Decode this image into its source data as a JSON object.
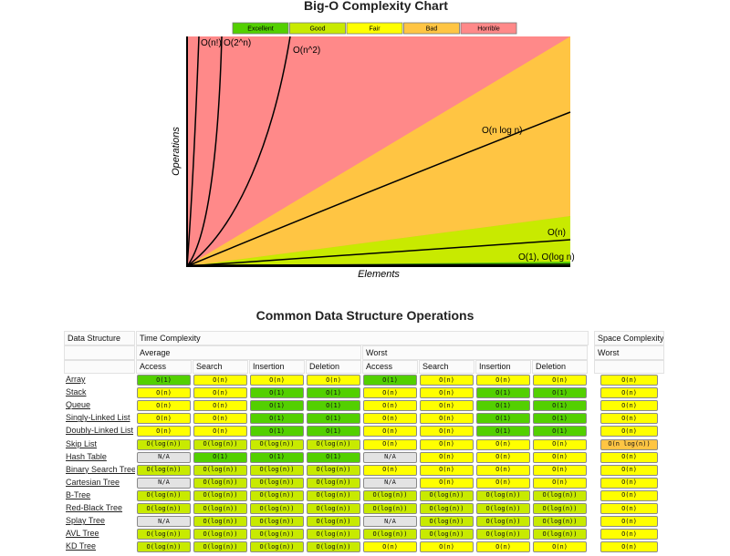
{
  "chart": {
    "title": "Big-O Complexity Chart",
    "legend": [
      {
        "label": "Excellent",
        "color": "#53d000"
      },
      {
        "label": "Good",
        "color": "#c8ea00"
      },
      {
        "label": "Fair",
        "color": "#ffff00"
      },
      {
        "label": "Bad",
        "color": "#ffc543"
      },
      {
        "label": "Horrible",
        "color": "#ff8989"
      }
    ],
    "y_axis_label": "Operations",
    "x_axis_label": "Elements",
    "curves": [
      "O(n!)",
      "O(2^n)",
      "O(n^2)",
      "O(n log n)",
      "O(n)",
      "O(1), O(log n)"
    ]
  },
  "table": {
    "title": "Common Data Structure Operations",
    "header": {
      "data_structure": "Data Structure",
      "time_complexity": "Time Complexity",
      "space_complexity": "Space Complexity",
      "average": "Average",
      "worst": "Worst",
      "space_worst": "Worst",
      "operations": [
        "Access",
        "Search",
        "Insertion",
        "Deletion",
        "Access",
        "Search",
        "Insertion",
        "Deletion"
      ]
    },
    "rows": [
      {
        "name": "Array",
        "cells": [
          {
            "text": "O(1)",
            "rating": "Excellent"
          },
          {
            "text": "O(n)",
            "rating": "Fair"
          },
          {
            "text": "O(n)",
            "rating": "Fair"
          },
          {
            "text": "O(n)",
            "rating": "Fair"
          },
          {
            "text": "O(1)",
            "rating": "Excellent"
          },
          {
            "text": "O(n)",
            "rating": "Fair"
          },
          {
            "text": "O(n)",
            "rating": "Fair"
          },
          {
            "text": "O(n)",
            "rating": "Fair"
          },
          {
            "text": "O(n)",
            "rating": "Fair"
          }
        ]
      },
      {
        "name": "Stack",
        "cells": [
          {
            "text": "O(n)",
            "rating": "Fair"
          },
          {
            "text": "O(n)",
            "rating": "Fair"
          },
          {
            "text": "O(1)",
            "rating": "Excellent"
          },
          {
            "text": "O(1)",
            "rating": "Excellent"
          },
          {
            "text": "O(n)",
            "rating": "Fair"
          },
          {
            "text": "O(n)",
            "rating": "Fair"
          },
          {
            "text": "O(1)",
            "rating": "Excellent"
          },
          {
            "text": "O(1)",
            "rating": "Excellent"
          },
          {
            "text": "O(n)",
            "rating": "Fair"
          }
        ]
      },
      {
        "name": "Queue",
        "cells": [
          {
            "text": "O(n)",
            "rating": "Fair"
          },
          {
            "text": "O(n)",
            "rating": "Fair"
          },
          {
            "text": "O(1)",
            "rating": "Excellent"
          },
          {
            "text": "O(1)",
            "rating": "Excellent"
          },
          {
            "text": "O(n)",
            "rating": "Fair"
          },
          {
            "text": "O(n)",
            "rating": "Fair"
          },
          {
            "text": "O(1)",
            "rating": "Excellent"
          },
          {
            "text": "O(1)",
            "rating": "Excellent"
          },
          {
            "text": "O(n)",
            "rating": "Fair"
          }
        ]
      },
      {
        "name": "Singly-Linked List",
        "cells": [
          {
            "text": "O(n)",
            "rating": "Fair"
          },
          {
            "text": "O(n)",
            "rating": "Fair"
          },
          {
            "text": "O(1)",
            "rating": "Excellent"
          },
          {
            "text": "O(1)",
            "rating": "Excellent"
          },
          {
            "text": "O(n)",
            "rating": "Fair"
          },
          {
            "text": "O(n)",
            "rating": "Fair"
          },
          {
            "text": "O(1)",
            "rating": "Excellent"
          },
          {
            "text": "O(1)",
            "rating": "Excellent"
          },
          {
            "text": "O(n)",
            "rating": "Fair"
          }
        ]
      },
      {
        "name": "Doubly-Linked List",
        "cells": [
          {
            "text": "O(n)",
            "rating": "Fair"
          },
          {
            "text": "O(n)",
            "rating": "Fair"
          },
          {
            "text": "O(1)",
            "rating": "Excellent"
          },
          {
            "text": "O(1)",
            "rating": "Excellent"
          },
          {
            "text": "O(n)",
            "rating": "Fair"
          },
          {
            "text": "O(n)",
            "rating": "Fair"
          },
          {
            "text": "O(1)",
            "rating": "Excellent"
          },
          {
            "text": "O(1)",
            "rating": "Excellent"
          },
          {
            "text": "O(n)",
            "rating": "Fair"
          }
        ]
      },
      {
        "name": "Skip List",
        "cells": [
          {
            "text": "O(log(n))",
            "rating": "Good"
          },
          {
            "text": "O(log(n))",
            "rating": "Good"
          },
          {
            "text": "O(log(n))",
            "rating": "Good"
          },
          {
            "text": "O(log(n))",
            "rating": "Good"
          },
          {
            "text": "O(n)",
            "rating": "Fair"
          },
          {
            "text": "O(n)",
            "rating": "Fair"
          },
          {
            "text": "O(n)",
            "rating": "Fair"
          },
          {
            "text": "O(n)",
            "rating": "Fair"
          },
          {
            "text": "O(n log(n))",
            "rating": "Bad"
          }
        ]
      },
      {
        "name": "Hash Table",
        "cells": [
          {
            "text": "N/A",
            "rating": null
          },
          {
            "text": "O(1)",
            "rating": "Excellent"
          },
          {
            "text": "O(1)",
            "rating": "Excellent"
          },
          {
            "text": "O(1)",
            "rating": "Excellent"
          },
          {
            "text": "N/A",
            "rating": null
          },
          {
            "text": "O(n)",
            "rating": "Fair"
          },
          {
            "text": "O(n)",
            "rating": "Fair"
          },
          {
            "text": "O(n)",
            "rating": "Fair"
          },
          {
            "text": "O(n)",
            "rating": "Fair"
          }
        ]
      },
      {
        "name": "Binary Search Tree",
        "cells": [
          {
            "text": "O(log(n))",
            "rating": "Good"
          },
          {
            "text": "O(log(n))",
            "rating": "Good"
          },
          {
            "text": "O(log(n))",
            "rating": "Good"
          },
          {
            "text": "O(log(n))",
            "rating": "Good"
          },
          {
            "text": "O(n)",
            "rating": "Fair"
          },
          {
            "text": "O(n)",
            "rating": "Fair"
          },
          {
            "text": "O(n)",
            "rating": "Fair"
          },
          {
            "text": "O(n)",
            "rating": "Fair"
          },
          {
            "text": "O(n)",
            "rating": "Fair"
          }
        ]
      },
      {
        "name": "Cartesian Tree",
        "cells": [
          {
            "text": "N/A",
            "rating": null
          },
          {
            "text": "O(log(n))",
            "rating": "Good"
          },
          {
            "text": "O(log(n))",
            "rating": "Good"
          },
          {
            "text": "O(log(n))",
            "rating": "Good"
          },
          {
            "text": "N/A",
            "rating": null
          },
          {
            "text": "O(n)",
            "rating": "Fair"
          },
          {
            "text": "O(n)",
            "rating": "Fair"
          },
          {
            "text": "O(n)",
            "rating": "Fair"
          },
          {
            "text": "O(n)",
            "rating": "Fair"
          }
        ]
      },
      {
        "name": "B-Tree",
        "cells": [
          {
            "text": "O(log(n))",
            "rating": "Good"
          },
          {
            "text": "O(log(n))",
            "rating": "Good"
          },
          {
            "text": "O(log(n))",
            "rating": "Good"
          },
          {
            "text": "O(log(n))",
            "rating": "Good"
          },
          {
            "text": "O(log(n))",
            "rating": "Good"
          },
          {
            "text": "O(log(n))",
            "rating": "Good"
          },
          {
            "text": "O(log(n))",
            "rating": "Good"
          },
          {
            "text": "O(log(n))",
            "rating": "Good"
          },
          {
            "text": "O(n)",
            "rating": "Fair"
          }
        ]
      },
      {
        "name": "Red-Black Tree",
        "cells": [
          {
            "text": "O(log(n))",
            "rating": "Good"
          },
          {
            "text": "O(log(n))",
            "rating": "Good"
          },
          {
            "text": "O(log(n))",
            "rating": "Good"
          },
          {
            "text": "O(log(n))",
            "rating": "Good"
          },
          {
            "text": "O(log(n))",
            "rating": "Good"
          },
          {
            "text": "O(log(n))",
            "rating": "Good"
          },
          {
            "text": "O(log(n))",
            "rating": "Good"
          },
          {
            "text": "O(log(n))",
            "rating": "Good"
          },
          {
            "text": "O(n)",
            "rating": "Fair"
          }
        ]
      },
      {
        "name": "Splay Tree",
        "cells": [
          {
            "text": "N/A",
            "rating": null
          },
          {
            "text": "O(log(n))",
            "rating": "Good"
          },
          {
            "text": "O(log(n))",
            "rating": "Good"
          },
          {
            "text": "O(log(n))",
            "rating": "Good"
          },
          {
            "text": "N/A",
            "rating": null
          },
          {
            "text": "O(log(n))",
            "rating": "Good"
          },
          {
            "text": "O(log(n))",
            "rating": "Good"
          },
          {
            "text": "O(log(n))",
            "rating": "Good"
          },
          {
            "text": "O(n)",
            "rating": "Fair"
          }
        ]
      },
      {
        "name": "AVL Tree",
        "cells": [
          {
            "text": "O(log(n))",
            "rating": "Good"
          },
          {
            "text": "O(log(n))",
            "rating": "Good"
          },
          {
            "text": "O(log(n))",
            "rating": "Good"
          },
          {
            "text": "O(log(n))",
            "rating": "Good"
          },
          {
            "text": "O(log(n))",
            "rating": "Good"
          },
          {
            "text": "O(log(n))",
            "rating": "Good"
          },
          {
            "text": "O(log(n))",
            "rating": "Good"
          },
          {
            "text": "O(log(n))",
            "rating": "Good"
          },
          {
            "text": "O(n)",
            "rating": "Fair"
          }
        ]
      },
      {
        "name": "KD Tree",
        "cells": [
          {
            "text": "O(log(n))",
            "rating": "Good"
          },
          {
            "text": "O(log(n))",
            "rating": "Good"
          },
          {
            "text": "O(log(n))",
            "rating": "Good"
          },
          {
            "text": "O(log(n))",
            "rating": "Good"
          },
          {
            "text": "O(n)",
            "rating": "Fair"
          },
          {
            "text": "O(n)",
            "rating": "Fair"
          },
          {
            "text": "O(n)",
            "rating": "Fair"
          },
          {
            "text": "O(n)",
            "rating": "Fair"
          },
          {
            "text": "O(n)",
            "rating": "Fair"
          }
        ]
      }
    ]
  }
}
